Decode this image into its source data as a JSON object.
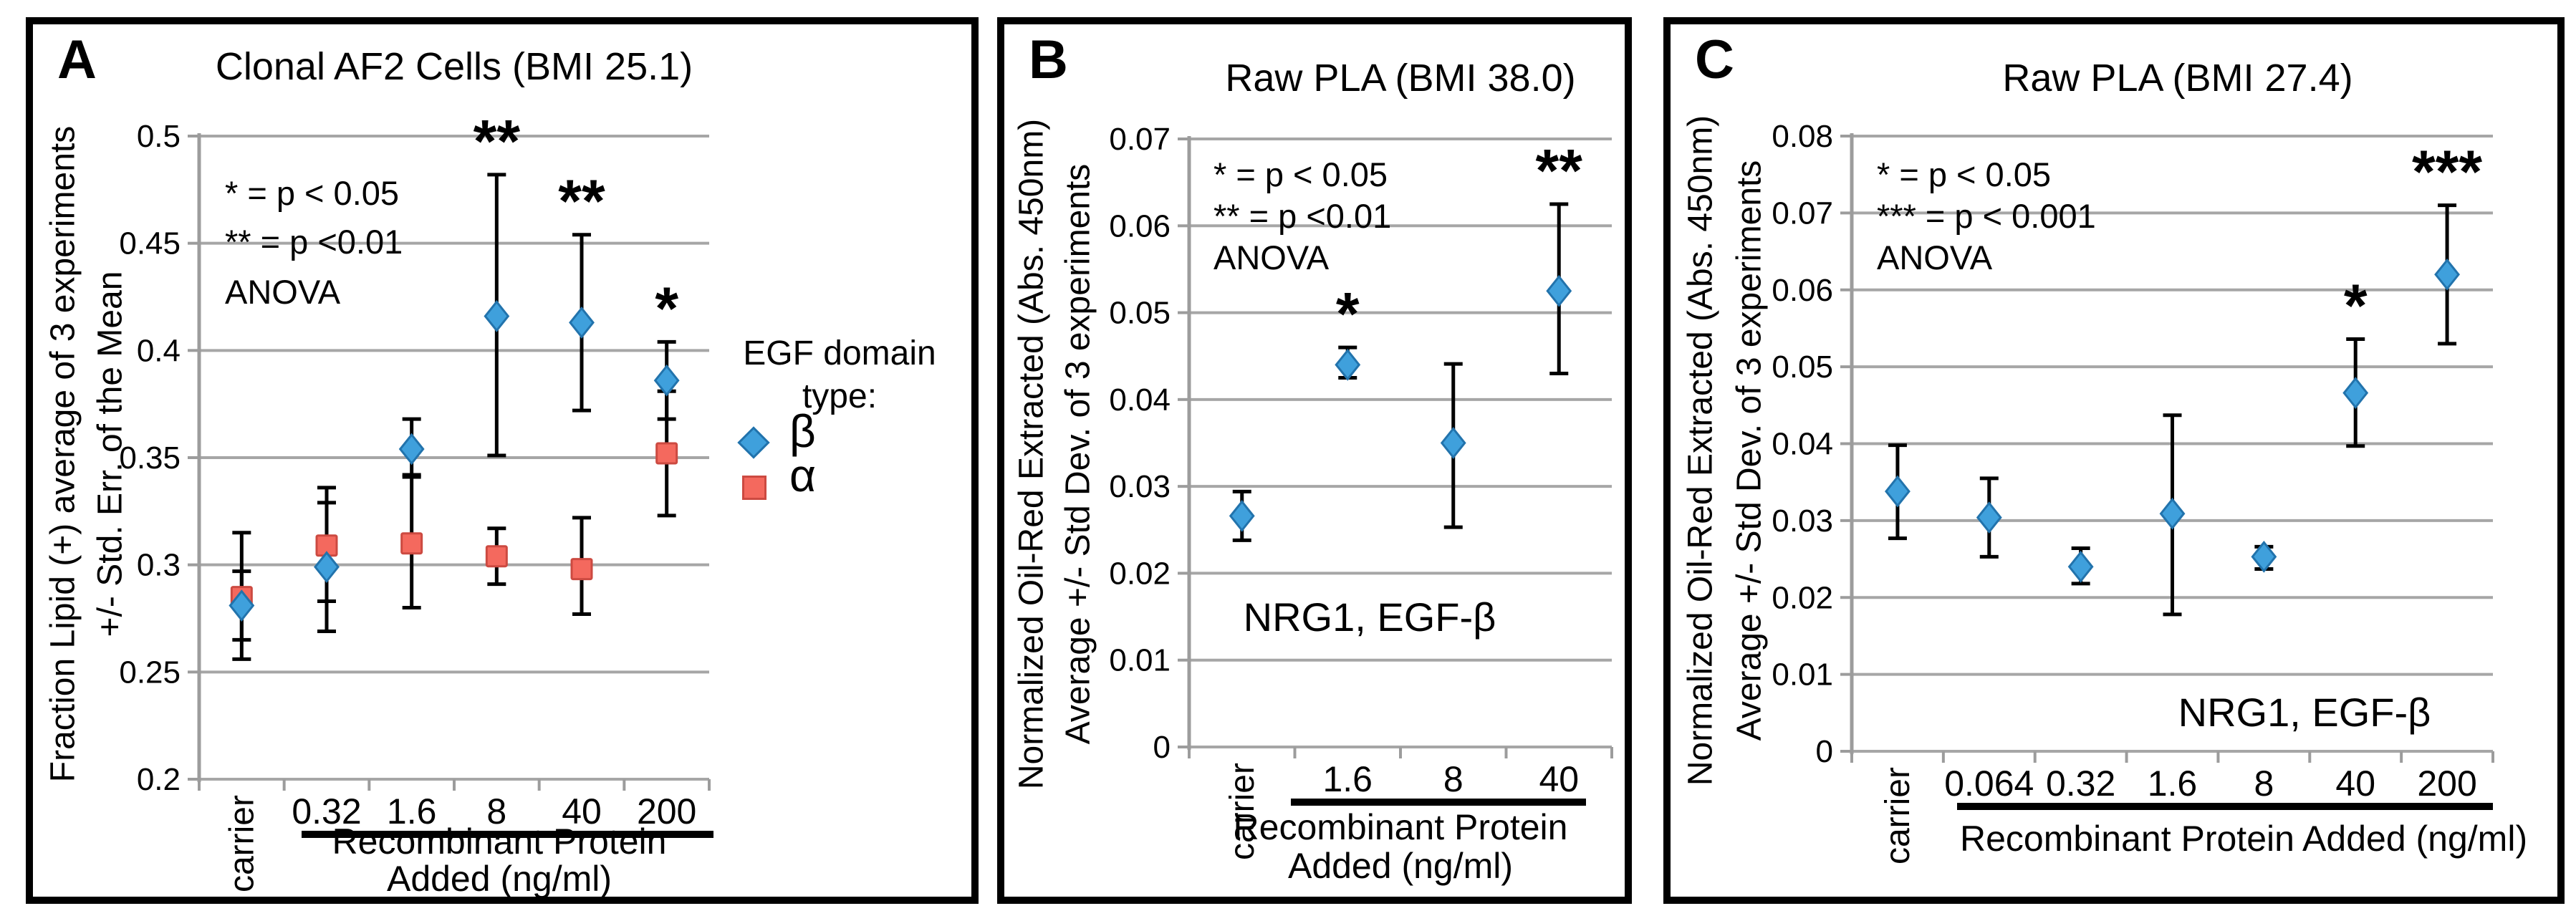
{
  "figure": {
    "panels": [
      {
        "letter": "A",
        "title": "Clonal AF2 Cells (BMI 25.1)",
        "y_label_line1": "Fraction Lipid (+) average of 3 experiments",
        "y_label_line2": "+/- Std. Err. of the Mean",
        "x_label_line1": "Recombinant Protein",
        "x_label_line2": "Added (ng/ml)",
        "annotation_line1": "* = p < 0.05",
        "annotation_line2": "** = p <0.01",
        "annotation_line3": "ANOVA",
        "legend": {
          "title_line1": "EGF domain",
          "title_line2": "type:",
          "entries": [
            {
              "label": "β",
              "marker": "diamond",
              "color": "#3FA0DC"
            },
            {
              "label": "α",
              "marker": "square",
              "color": "#F4695E"
            }
          ]
        }
      },
      {
        "letter": "B",
        "title": "Raw PLA  (BMI 38.0)",
        "y_label_line1": "Normalized Oil-Red Extracted (Abs. 450nm)",
        "y_label_line2": "Average +/- Std Dev. of 3 experiments",
        "x_label_line1": "Recombinant Protein",
        "x_label_line2": "Added (ng/ml)",
        "annotation_line1": "* = p < 0.05",
        "annotation_line2": "** = p <0.01",
        "annotation_line3": "ANOVA",
        "plot_text": "NRG1, EGF-β"
      },
      {
        "letter": "C",
        "title": "Raw PLA (BMI 27.4)",
        "y_label_line1": "Normalized Oil-Red Extracted (Abs. 450nm)",
        "y_label_line2": "Average +/- Std Dev. of 3 experiments",
        "x_label_line1": "Recombinant Protein Added (ng/ml)",
        "annotation_line1": "* = p < 0.05",
        "annotation_line2": "*** = p < 0.001",
        "annotation_line3": "ANOVA",
        "plot_text": "NRG1, EGF-β"
      }
    ]
  },
  "chart_data": [
    {
      "type": "scatter",
      "title": "Clonal AF2 Cells (BMI 25.1)",
      "xlabel": "Recombinant Protein Added (ng/ml)",
      "ylabel": "Fraction Lipid (+) average of 3 experiments +/- Std. Err. of the Mean",
      "categories": [
        "carrier",
        "0.32",
        "1.6",
        "8",
        "40",
        "200"
      ],
      "ylim": [
        0.2,
        0.5
      ],
      "y_ticks": [
        "0.5",
        "0.45",
        "0.4",
        "0.35",
        "0.3",
        "0.25",
        "0.2"
      ],
      "grid": true,
      "legend_position": "right",
      "series": [
        {
          "name": "β",
          "marker": "diamond",
          "color": "#3FA0DC",
          "edge_color": "#2273AC",
          "values": [
            0.281,
            0.299,
            0.354,
            0.416,
            0.413,
            0.386
          ],
          "err_low": [
            0.265,
            0.269,
            0.342,
            0.351,
            0.372,
            0.368
          ],
          "err_high": [
            0.297,
            0.329,
            0.368,
            0.482,
            0.454,
            0.404
          ],
          "sig": [
            "",
            "",
            "",
            "**",
            "**",
            "*"
          ]
        },
        {
          "name": "α",
          "marker": "square",
          "color": "#F4695E",
          "edge_color": "#CC4A41",
          "values": [
            0.285,
            0.309,
            0.31,
            0.304,
            0.298,
            0.352
          ],
          "err_low": [
            0.256,
            0.283,
            0.28,
            0.291,
            0.277,
            0.323
          ],
          "err_high": [
            0.315,
            0.336,
            0.341,
            0.317,
            0.322,
            0.381
          ],
          "sig": [
            "",
            "",
            "",
            "",
            "",
            ""
          ]
        }
      ]
    },
    {
      "type": "scatter",
      "title": "Raw PLA  (BMI 38.0)",
      "xlabel": "Recombinant Protein Added (ng/ml)",
      "ylabel": "Normalized Oil-Red Extracted (Abs. 450nm) Average +/- Std Dev. of 3 experiments",
      "categories": [
        "carrier",
        "1.6",
        "8",
        "40"
      ],
      "ylim": [
        0,
        0.07
      ],
      "y_ticks": [
        "0.07",
        "0.06",
        "0.05",
        "0.04",
        "0.03",
        "0.02",
        "0.01",
        "0"
      ],
      "grid": true,
      "series": [
        {
          "name": "NRG1, EGF-β",
          "marker": "diamond",
          "color": "#3FA0DC",
          "edge_color": "#2273AC",
          "values": [
            0.0266,
            0.044,
            0.035,
            0.0525
          ],
          "err_low": [
            0.0238,
            0.0425,
            0.0253,
            0.043
          ],
          "err_high": [
            0.0294,
            0.046,
            0.0441,
            0.0625
          ],
          "sig": [
            "",
            "*",
            "",
            "**"
          ]
        }
      ]
    },
    {
      "type": "scatter",
      "title": "Raw PLA (BMI 27.4)",
      "xlabel": "Recombinant Protein Added (ng/ml)",
      "ylabel": "Normalized Oil-Red Extracted (Abs. 450nm) Average +/- Std Dev. of 3 experiments",
      "categories": [
        "carrier",
        "0.064",
        "0.32",
        "1.6",
        "8",
        "40",
        "200"
      ],
      "ylim": [
        0,
        0.08
      ],
      "y_ticks": [
        "0.08",
        "0.07",
        "0.06",
        "0.05",
        "0.04",
        "0.03",
        "0.02",
        "0.01",
        "0"
      ],
      "grid": true,
      "series": [
        {
          "name": "NRG1, EGF-β",
          "marker": "diamond",
          "color": "#3FA0DC",
          "edge_color": "#2273AC",
          "values": [
            0.0338,
            0.0304,
            0.024,
            0.0309,
            0.0253,
            0.0466,
            0.062
          ],
          "err_low": [
            0.0277,
            0.0253,
            0.0218,
            0.0178,
            0.0237,
            0.0397,
            0.053
          ],
          "err_high": [
            0.0398,
            0.0355,
            0.0264,
            0.0437,
            0.0266,
            0.0536,
            0.071
          ],
          "sig": [
            "",
            "",
            "",
            "",
            "",
            "*",
            "***"
          ]
        }
      ]
    }
  ],
  "colors": {
    "beta_fill": "#3FA0DC",
    "beta_edge": "#2273AC",
    "alpha_fill": "#F4695E",
    "alpha_edge": "#CC4A41",
    "gridline": "#A6A6A6",
    "axis": "#9C9C9C",
    "error_bar": "#000000",
    "panel_border": "#000000",
    "background": "#FFFFFF",
    "text": "#000000"
  }
}
